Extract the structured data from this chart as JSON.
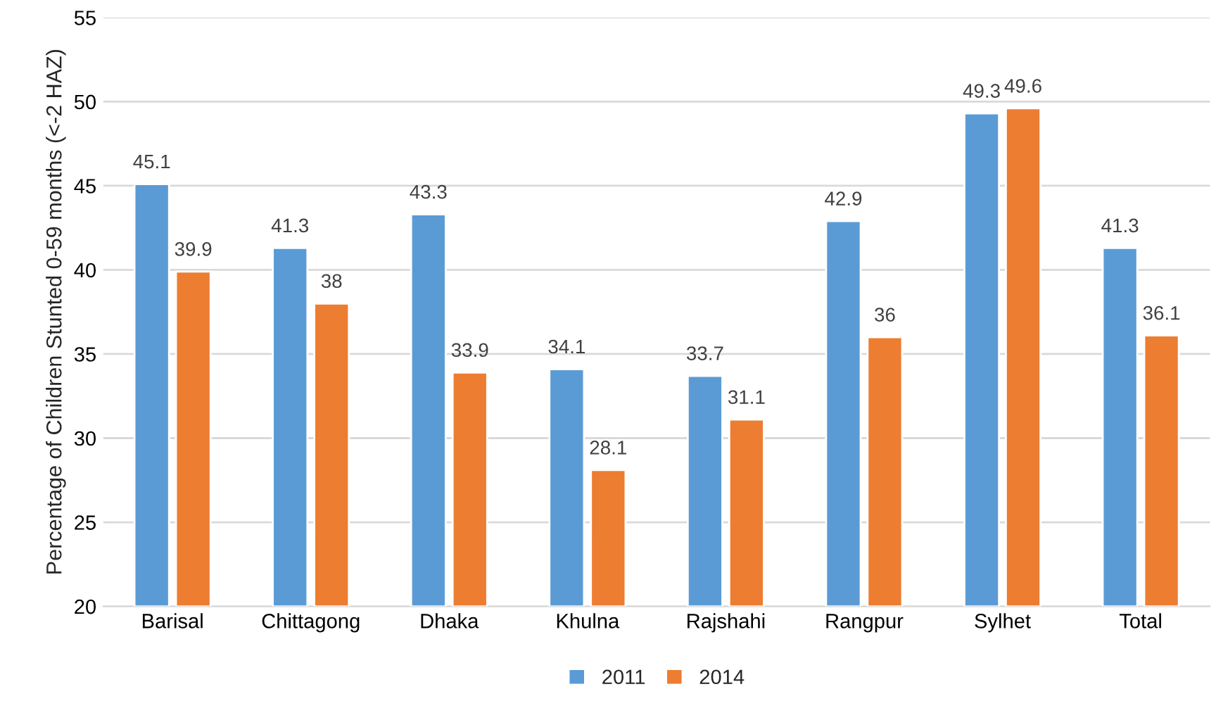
{
  "chart_data": {
    "type": "bar",
    "ylabel": "Percentage of Children Stunted 0-59 months (<-2 HAZ)",
    "categories": [
      "Barisal",
      "Chittagong",
      "Dhaka",
      "Khulna",
      "Rajshahi",
      "Rangpur",
      "Sylhet",
      "Total"
    ],
    "series": [
      {
        "name": "2011",
        "color": "#5b9bd5",
        "values": [
          45.1,
          41.3,
          43.3,
          34.1,
          33.7,
          42.9,
          49.3,
          41.3
        ]
      },
      {
        "name": "2014",
        "color": "#ed7d31",
        "values": [
          39.9,
          38,
          33.9,
          28.1,
          31.1,
          36,
          49.6,
          36.1
        ]
      }
    ],
    "ylim": [
      20,
      55
    ],
    "yticks": [
      20,
      25,
      30,
      35,
      40,
      45,
      50,
      55
    ],
    "grid": "y",
    "legend": "bottom",
    "data_labels": true
  }
}
